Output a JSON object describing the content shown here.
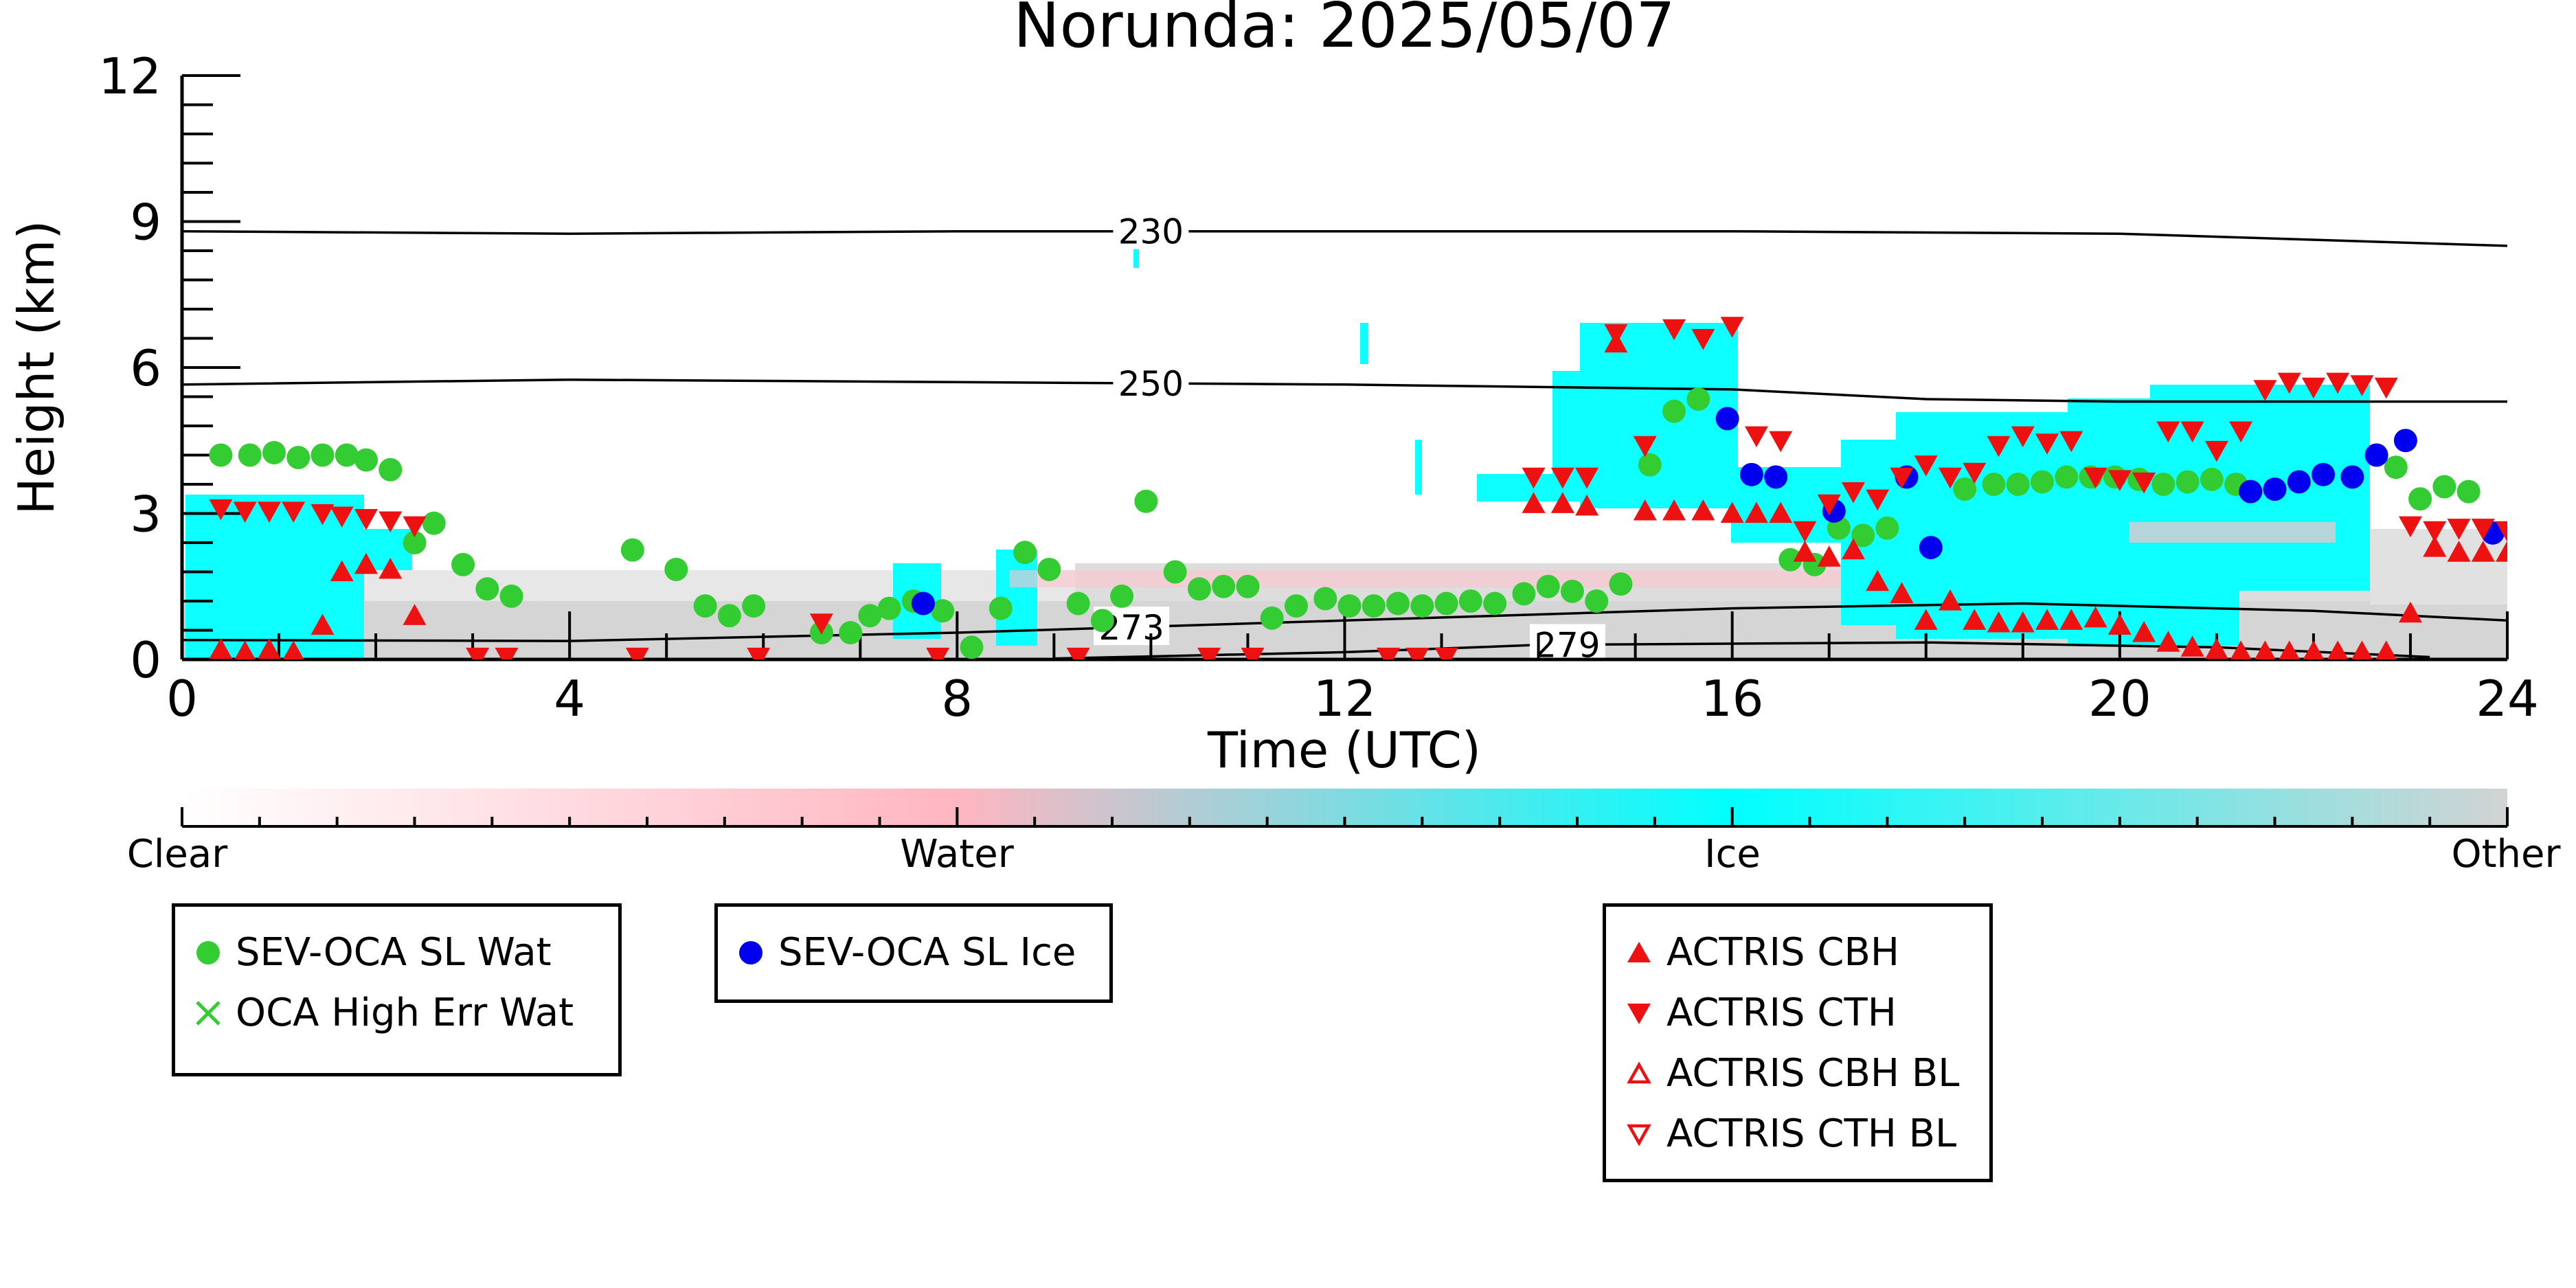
{
  "chart_data": {
    "type": "scatter",
    "title": "Norunda: 2025/05/07",
    "xlabel": "Time (UTC)",
    "ylabel": "Height (km)",
    "xlim": [
      0,
      24
    ],
    "ylim": [
      0,
      12
    ],
    "x_ticks": [
      "0",
      "4",
      "8",
      "12",
      "16",
      "20",
      "24"
    ],
    "y_ticks": [
      "0",
      "3",
      "6",
      "9",
      "12"
    ],
    "background": "cloud phase curtain (Clear / Water / Ice / Other) with temperature contours",
    "contours": [
      {
        "label": "230",
        "label_x": 10.0,
        "points": [
          [
            0,
            8.8
          ],
          [
            4,
            8.75
          ],
          [
            8,
            8.8
          ],
          [
            12,
            8.8
          ],
          [
            16,
            8.8
          ],
          [
            20,
            8.75
          ],
          [
            24,
            8.5
          ]
        ]
      },
      {
        "label": "250",
        "label_x": 10.0,
        "points": [
          [
            0,
            5.65
          ],
          [
            4,
            5.75
          ],
          [
            8,
            5.7
          ],
          [
            12,
            5.65
          ],
          [
            16,
            5.55
          ],
          [
            18,
            5.35
          ],
          [
            20,
            5.3
          ],
          [
            24,
            5.3
          ]
        ]
      },
      {
        "label": "273",
        "label_x": 9.8,
        "points": [
          [
            0,
            0.4
          ],
          [
            4,
            0.38
          ],
          [
            8,
            0.55
          ],
          [
            12,
            0.8
          ],
          [
            16,
            1.05
          ],
          [
            19,
            1.15
          ],
          [
            22,
            1.0
          ],
          [
            24,
            0.8
          ]
        ]
      },
      {
        "label": "279",
        "label_x": 14.3,
        "points": [
          [
            9,
            0.02
          ],
          [
            12,
            0.15
          ],
          [
            14,
            0.3
          ],
          [
            18,
            0.35
          ],
          [
            21,
            0.25
          ],
          [
            23.2,
            0.05
          ]
        ]
      }
    ],
    "series": [
      {
        "name": "SEV-OCA SL Wat",
        "color": "#33cc33",
        "marker": "circle",
        "points": [
          [
            0.4,
            4.2
          ],
          [
            0.7,
            4.2
          ],
          [
            0.95,
            4.25
          ],
          [
            1.2,
            4.15
          ],
          [
            1.45,
            4.2
          ],
          [
            1.7,
            4.2
          ],
          [
            1.9,
            4.1
          ],
          [
            2.15,
            3.9
          ],
          [
            2.4,
            2.4
          ],
          [
            2.6,
            2.8
          ],
          [
            2.9,
            1.95
          ],
          [
            3.15,
            1.45
          ],
          [
            3.4,
            1.3
          ],
          [
            4.65,
            2.25
          ],
          [
            5.1,
            1.85
          ],
          [
            5.4,
            1.1
          ],
          [
            5.65,
            0.9
          ],
          [
            5.9,
            1.1
          ],
          [
            6.6,
            0.55
          ],
          [
            6.9,
            0.55
          ],
          [
            7.1,
            0.9
          ],
          [
            7.3,
            1.05
          ],
          [
            7.55,
            1.2
          ],
          [
            7.85,
            1.0
          ],
          [
            8.15,
            0.25
          ],
          [
            8.45,
            1.05
          ],
          [
            8.7,
            2.2
          ],
          [
            8.95,
            1.85
          ],
          [
            9.25,
            1.15
          ],
          [
            9.5,
            0.8
          ],
          [
            9.7,
            1.3
          ],
          [
            9.95,
            3.25
          ],
          [
            10.25,
            1.8
          ],
          [
            10.5,
            1.45
          ],
          [
            10.75,
            1.5
          ],
          [
            11.0,
            1.5
          ],
          [
            11.25,
            0.85
          ],
          [
            11.5,
            1.1
          ],
          [
            11.8,
            1.25
          ],
          [
            12.05,
            1.1
          ],
          [
            12.3,
            1.1
          ],
          [
            12.55,
            1.15
          ],
          [
            12.8,
            1.1
          ],
          [
            13.05,
            1.15
          ],
          [
            13.3,
            1.2
          ],
          [
            13.55,
            1.15
          ],
          [
            13.85,
            1.35
          ],
          [
            14.1,
            1.5
          ],
          [
            14.35,
            1.4
          ],
          [
            14.6,
            1.2
          ],
          [
            14.85,
            1.55
          ],
          [
            15.15,
            4.0
          ],
          [
            15.4,
            5.1
          ],
          [
            15.65,
            5.35
          ],
          [
            16.6,
            2.05
          ],
          [
            16.85,
            1.95
          ],
          [
            17.1,
            2.7
          ],
          [
            17.35,
            2.55
          ],
          [
            17.6,
            2.7
          ],
          [
            18.4,
            3.5
          ],
          [
            18.7,
            3.6
          ],
          [
            18.95,
            3.6
          ],
          [
            19.2,
            3.65
          ],
          [
            19.45,
            3.75
          ],
          [
            19.7,
            3.75
          ],
          [
            19.95,
            3.75
          ],
          [
            20.2,
            3.7
          ],
          [
            20.45,
            3.6
          ],
          [
            20.7,
            3.65
          ],
          [
            20.95,
            3.7
          ],
          [
            21.2,
            3.6
          ],
          [
            22.85,
            3.95
          ],
          [
            23.1,
            3.3
          ],
          [
            23.35,
            3.55
          ],
          [
            23.6,
            3.45
          ]
        ]
      },
      {
        "name": "OCA High Err Wat",
        "color": "#33cc33",
        "marker": "x",
        "points": []
      },
      {
        "name": "SEV-OCA SL Ice",
        "color": "#0000ee",
        "marker": "circle",
        "points": [
          [
            7.65,
            1.15
          ],
          [
            15.95,
            4.95
          ],
          [
            16.2,
            3.8
          ],
          [
            16.45,
            3.75
          ],
          [
            17.05,
            3.05
          ],
          [
            17.8,
            3.75
          ],
          [
            18.05,
            2.3
          ],
          [
            21.35,
            3.45
          ],
          [
            21.6,
            3.5
          ],
          [
            21.85,
            3.65
          ],
          [
            22.1,
            3.8
          ],
          [
            22.4,
            3.75
          ],
          [
            22.65,
            4.2
          ],
          [
            22.95,
            4.5
          ],
          [
            23.85,
            2.6
          ]
        ]
      },
      {
        "name": "ACTRIS CBH",
        "color": "#ee1111",
        "marker": "triangle-up",
        "points": [
          [
            0.4,
            0.2
          ],
          [
            0.65,
            0.15
          ],
          [
            0.9,
            0.2
          ],
          [
            1.15,
            0.15
          ],
          [
            1.45,
            0.7
          ],
          [
            1.65,
            1.8
          ],
          [
            1.9,
            1.95
          ],
          [
            2.15,
            1.85
          ],
          [
            2.4,
            0.9
          ],
          [
            13.95,
            3.2
          ],
          [
            14.25,
            3.2
          ],
          [
            14.5,
            3.15
          ],
          [
            14.8,
            6.5
          ],
          [
            15.1,
            3.05
          ],
          [
            15.4,
            3.05
          ],
          [
            15.7,
            3.05
          ],
          [
            16.0,
            3.0
          ],
          [
            16.25,
            3.0
          ],
          [
            16.5,
            3.0
          ],
          [
            16.75,
            2.2
          ],
          [
            17.0,
            2.1
          ],
          [
            17.25,
            2.25
          ],
          [
            17.5,
            1.6
          ],
          [
            17.75,
            1.35
          ],
          [
            18.0,
            0.8
          ],
          [
            18.25,
            1.2
          ],
          [
            18.5,
            0.8
          ],
          [
            18.75,
            0.75
          ],
          [
            19.0,
            0.75
          ],
          [
            19.25,
            0.8
          ],
          [
            19.5,
            0.8
          ],
          [
            19.75,
            0.85
          ],
          [
            20.0,
            0.7
          ],
          [
            20.25,
            0.55
          ],
          [
            20.5,
            0.35
          ],
          [
            20.75,
            0.25
          ],
          [
            21.0,
            0.2
          ],
          [
            21.25,
            0.15
          ],
          [
            21.5,
            0.15
          ],
          [
            21.75,
            0.15
          ],
          [
            22.0,
            0.15
          ],
          [
            22.25,
            0.15
          ],
          [
            22.5,
            0.15
          ],
          [
            22.75,
            0.15
          ],
          [
            23.0,
            0.95
          ],
          [
            23.25,
            2.3
          ],
          [
            23.5,
            2.2
          ],
          [
            23.75,
            2.2
          ],
          [
            24.0,
            2.2
          ]
        ]
      },
      {
        "name": "ACTRIS CTH",
        "color": "#ee1111",
        "marker": "triangle-down",
        "points": [
          [
            0.4,
            3.1
          ],
          [
            0.65,
            3.05
          ],
          [
            0.9,
            3.05
          ],
          [
            1.15,
            3.05
          ],
          [
            1.45,
            3.0
          ],
          [
            1.65,
            2.95
          ],
          [
            1.9,
            2.9
          ],
          [
            2.15,
            2.85
          ],
          [
            2.4,
            2.75
          ],
          [
            13.95,
            3.75
          ],
          [
            14.25,
            3.75
          ],
          [
            14.5,
            3.75
          ],
          [
            14.8,
            6.7
          ],
          [
            15.1,
            4.4
          ],
          [
            15.4,
            6.8
          ],
          [
            15.7,
            6.6
          ],
          [
            16.0,
            6.85
          ],
          [
            16.25,
            4.6
          ],
          [
            16.5,
            4.5
          ],
          [
            16.75,
            2.65
          ],
          [
            17.0,
            3.2
          ],
          [
            17.25,
            3.45
          ],
          [
            17.5,
            3.3
          ],
          [
            17.75,
            3.75
          ],
          [
            18.0,
            4.0
          ],
          [
            18.25,
            3.75
          ],
          [
            18.5,
            3.85
          ],
          [
            18.75,
            4.4
          ],
          [
            19.0,
            4.6
          ],
          [
            19.25,
            4.45
          ],
          [
            19.5,
            4.5
          ],
          [
            19.75,
            3.75
          ],
          [
            20.0,
            3.7
          ],
          [
            20.25,
            3.65
          ],
          [
            20.5,
            4.7
          ],
          [
            20.75,
            4.7
          ],
          [
            21.0,
            4.3
          ],
          [
            21.25,
            4.7
          ],
          [
            21.5,
            5.55
          ],
          [
            21.75,
            5.7
          ],
          [
            22.0,
            5.6
          ],
          [
            22.25,
            5.7
          ],
          [
            22.5,
            5.65
          ],
          [
            22.75,
            5.6
          ],
          [
            23.0,
            2.75
          ],
          [
            23.25,
            2.65
          ],
          [
            23.5,
            2.7
          ],
          [
            23.75,
            2.7
          ],
          [
            24.0,
            2.65
          ],
          [
            6.6,
            0.75
          ],
          [
            3.05,
            0.05
          ],
          [
            3.35,
            0.05
          ],
          [
            4.7,
            0.05
          ],
          [
            5.95,
            0.05
          ],
          [
            7.8,
            0.05
          ],
          [
            9.25,
            0.05
          ],
          [
            10.6,
            0.05
          ],
          [
            11.05,
            0.05
          ],
          [
            12.45,
            0.05
          ],
          [
            12.75,
            0.05
          ],
          [
            13.05,
            0.05
          ]
        ]
      },
      {
        "name": "ACTRIS CBH BL",
        "color": "#ee1111",
        "marker": "triangle-up-open",
        "points": []
      },
      {
        "name": "ACTRIS CTH BL",
        "color": "#ee1111",
        "marker": "triangle-down-open",
        "points": []
      }
    ],
    "colorbar": {
      "labels": [
        "Clear",
        "Water",
        "Ice",
        "Other"
      ],
      "colors": [
        "#ffffff",
        "#ffb6c1",
        "#00ffff",
        "#d3d3d3"
      ]
    },
    "legend_groups": [
      [
        "SEV-OCA SL Wat",
        "OCA High Err Wat"
      ],
      [
        "SEV-OCA SL Ice"
      ],
      [
        "ACTRIS CBH",
        "ACTRIS CTH",
        "ACTRIS CBH BL",
        "ACTRIS CTH BL"
      ]
    ]
  }
}
